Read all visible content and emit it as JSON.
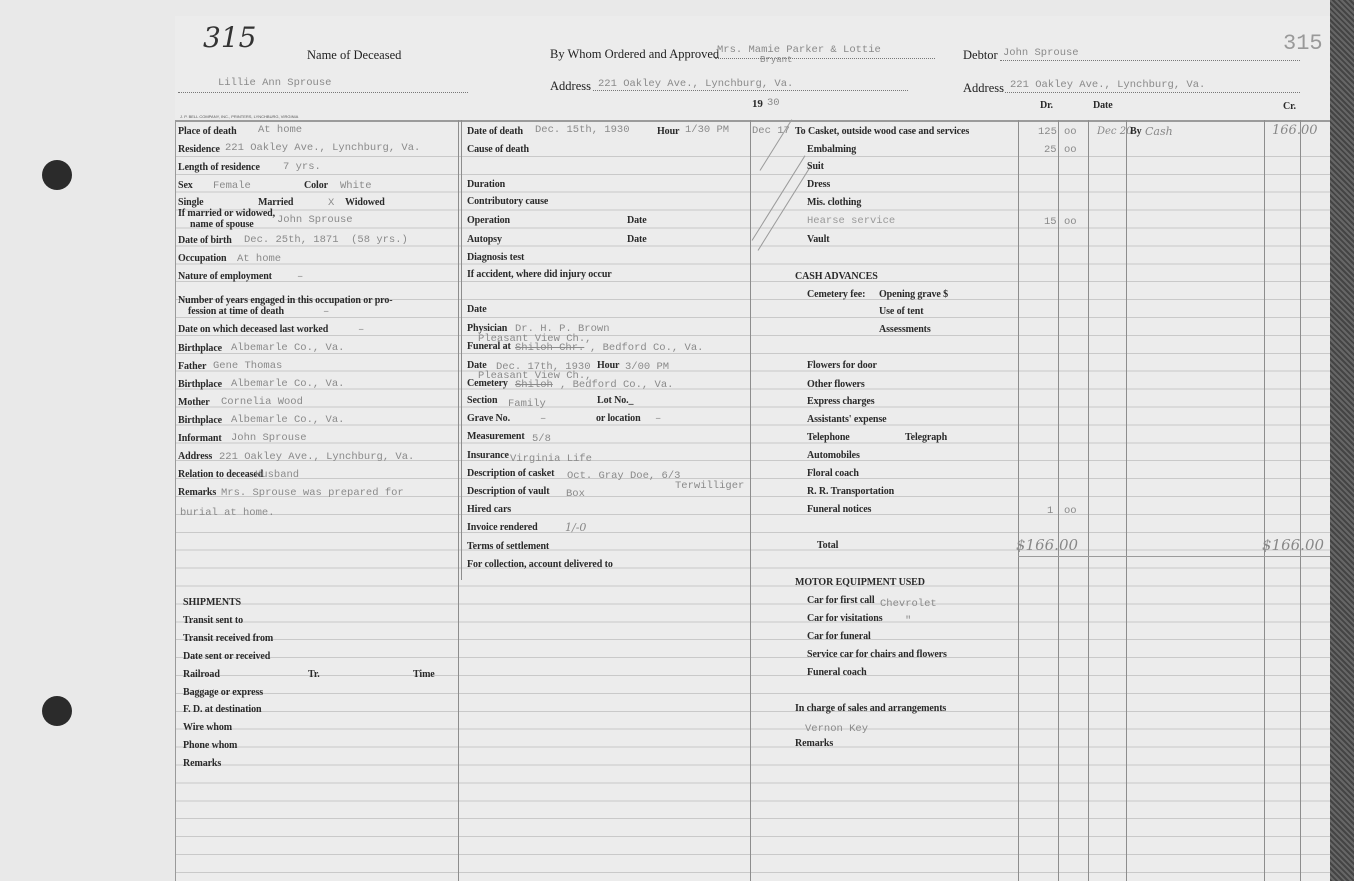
{
  "header": {
    "page_number_handwritten": "315",
    "page_number_stamp": "315",
    "name_of_deceased_label": "Name of Deceased",
    "name_of_deceased": "Lillie Ann Sprouse",
    "ordered_label": "By Whom Ordered and Approved",
    "ordered_by_line1": "Mrs. Mamie Parker & Lottie",
    "ordered_by_line2": "Bryant",
    "address_label": "Address",
    "ordered_address": "221 Oakley Ave., Lynchburg, Va.",
    "year_prefix": "19",
    "year_suffix": "30",
    "debtor_label": "Debtor",
    "debtor": "John Sprouse",
    "debtor_address": "221 Oakley Ave., Lynchburg, Va.",
    "dr_label": "Dr.",
    "date_label": "Date",
    "cr_label": "Cr.",
    "printer": "J. P. BELL COMPANY, INC., PRINTERS, LYNCHBURG, VIRGINIA"
  },
  "left": {
    "place_of_death": {
      "label": "Place of death",
      "value": "At home"
    },
    "residence": {
      "label": "Residence",
      "value": "221 Oakley Ave., Lynchburg, Va."
    },
    "length_of_residence": {
      "label": "Length of residence",
      "value": "7 yrs."
    },
    "sex": {
      "label": "Sex",
      "value": "Female"
    },
    "color": {
      "label": "Color",
      "value": "White"
    },
    "single_label": "Single",
    "married_label": "Married",
    "marital_mark": "X",
    "widowed_label": "Widowed",
    "spouse": {
      "label1": "If married or widowed,",
      "label2": "name of spouse",
      "value": "John Sprouse"
    },
    "date_of_birth": {
      "label": "Date of birth",
      "value": "Dec. 25th, 1871  (58 yrs.)"
    },
    "occupation": {
      "label": "Occupation",
      "value": "At home"
    },
    "nature_of_employment": {
      "label": "Nature of employment",
      "value": "–"
    },
    "years_engaged": {
      "label1": "Number of years engaged in this occupation or pro-",
      "label2": "fession at time of death",
      "value": "–"
    },
    "last_worked": {
      "label": "Date on which deceased last worked",
      "value": "–"
    },
    "birthplace": {
      "label": "Birthplace",
      "value": "Albemarle Co., Va."
    },
    "father": {
      "label": "Father",
      "value": "Gene Thomas"
    },
    "father_birthplace": {
      "label": "Birthplace",
      "value": "Albemarle Co., Va."
    },
    "mother": {
      "label": "Mother",
      "value": "Cornelia Wood"
    },
    "mother_birthplace": {
      "label": "Birthplace",
      "value": "Albemarle Co., Va."
    },
    "informant": {
      "label": "Informant",
      "value": "John Sprouse"
    },
    "informant_address": {
      "label": "Address",
      "value": "221 Oakley Ave., Lynchburg, Va."
    },
    "relation": {
      "label": "Relation to deceased",
      "value": "Husband"
    },
    "remarks": {
      "label": "Remarks",
      "value1": "Mrs. Sprouse was prepared for",
      "value2": "burial at home."
    }
  },
  "shipments": {
    "title": "SHIPMENTS",
    "transit_sent_to": "Transit sent to",
    "transit_received_from": "Transit received from",
    "date_sent": "Date sent or received",
    "railroad": "Railroad",
    "tr": "Tr.",
    "time": "Time",
    "baggage": "Baggage or express",
    "fd": "F. D. at destination",
    "wire": "Wire whom",
    "phone": "Phone whom",
    "remarks": "Remarks"
  },
  "middle": {
    "date_of_death": {
      "label": "Date of death",
      "value": "Dec. 15th, 1930",
      "hour_label": "Hour",
      "hour": "1/30 PM"
    },
    "cause": "Cause of death",
    "duration": "Duration",
    "contributory": "Contributory cause",
    "operation": "Operation",
    "operation_date": "Date",
    "autopsy": "Autopsy",
    "autopsy_date": "Date",
    "diagnosis": "Diagnosis test",
    "accident": "If accident, where did injury occur",
    "date": "Date",
    "physician": {
      "label": "Physician",
      "value": "Dr. H. P. Brown"
    },
    "funeral_at": {
      "label": "Funeral at",
      "above": "Pleasant View Ch.,",
      "struck": "Shiloh Chr.",
      "value": ", Bedford Co., Va."
    },
    "funeral_date": {
      "label": "Date",
      "value": "Dec. 17th, 1930",
      "hour_label": "Hour",
      "hour": "3/00 PM"
    },
    "cemetery": {
      "label": "Cemetery",
      "above": "Pleasant View Ch.,",
      "struck": "Shiloh",
      "value": ", Bedford Co., Va."
    },
    "section": {
      "label": "Section",
      "value": "Family",
      "lot_label": "Lot No._"
    },
    "grave": {
      "label": "Grave No.",
      "value": "–",
      "location_label": "or location",
      "location": "–"
    },
    "measurement": {
      "label": "Measurement",
      "value": "5/8"
    },
    "insurance": {
      "label": "Insurance",
      "value": "Virginia Life"
    },
    "casket": {
      "label": "Description of casket",
      "value": "Oct. Gray Doe, 6/3",
      "maker": "Terwilliger"
    },
    "vault": {
      "label": "Description of vault",
      "value": "Box"
    },
    "hired_cars": "Hired cars",
    "invoice": {
      "label": "Invoice rendered",
      "value": "1/-0"
    },
    "terms": "Terms of settlement",
    "collection": "For collection, account delivered to"
  },
  "charges": {
    "date": "Dec 17",
    "items": [
      {
        "label": "To Casket, outside wood case and services",
        "dollars": "125",
        "cents": "oo"
      },
      {
        "label": "Embalming",
        "dollars": "25",
        "cents": "oo"
      },
      {
        "label": "Suit"
      },
      {
        "label": "Dress"
      },
      {
        "label": "Mis. clothing"
      },
      {
        "label": "Hearse service",
        "dollars": "15",
        "cents": "oo"
      },
      {
        "label": "Vault"
      }
    ],
    "cash_advances": "CASH ADVANCES",
    "cemetery_fee": "Cemetery fee:",
    "opening_grave": "Opening grave $",
    "use_of_tent": "Use of tent",
    "assessments": "Assessments",
    "flowers_for_door": "Flowers for door",
    "other_flowers": "Other flowers",
    "express": "Express charges",
    "assistants": "Assistants' expense",
    "telephone": "Telephone",
    "telegraph": "Telegraph",
    "automobiles": "Automobiles",
    "floral_coach": "Floral coach",
    "rr": "R. R. Transportation",
    "funeral_notices": {
      "label": "Funeral notices",
      "dollars": "1",
      "cents": "oo"
    },
    "total": {
      "label": "Total",
      "value": "$166.00"
    },
    "credit": {
      "date": "Dec 20",
      "by_label": "By",
      "by": "Cash",
      "amount": "166.00",
      "total": "$166.00"
    },
    "motor": "MOTOR EQUIPMENT USED",
    "first_call": {
      "label": "Car for first call",
      "value": "Chevrolet"
    },
    "visitations": {
      "label": "Car for visitations",
      "value": "\""
    },
    "car_funeral": "Car for funeral",
    "service_car": "Service car for chairs and flowers",
    "funeral_coach": "Funeral coach",
    "in_charge": {
      "label": "In charge of sales and arrangements",
      "value": "Vernon Key"
    },
    "remarks": "Remarks"
  }
}
